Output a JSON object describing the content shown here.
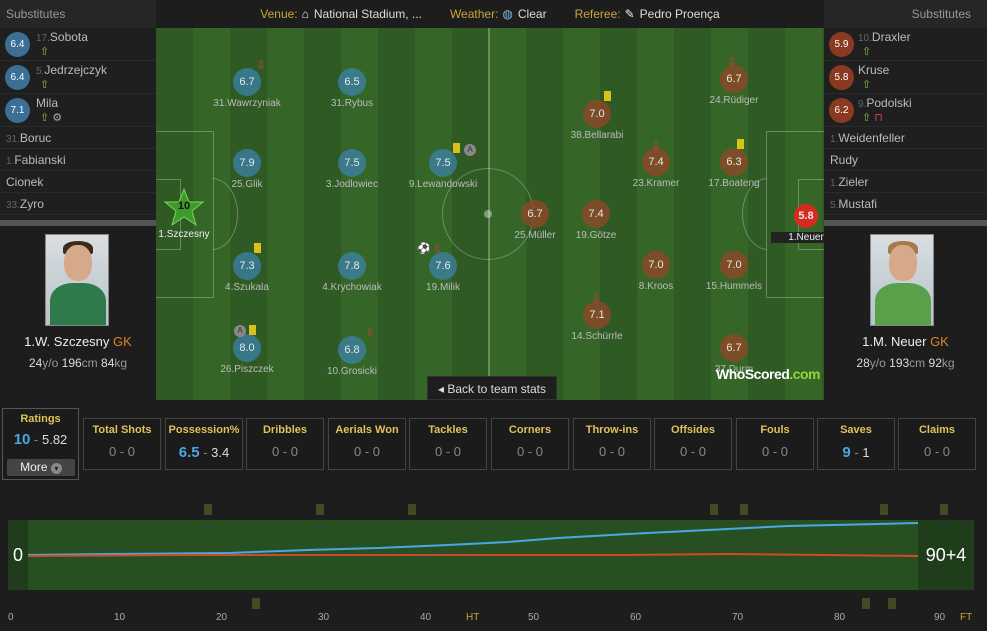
{
  "header": {
    "substitutes_left": "Substitutes",
    "substitutes_right": "Substitutes",
    "venue_label": "Venue:",
    "venue": "National Stadium, ...",
    "weather_label": "Weather:",
    "weather": "Clear",
    "referee_label": "Referee:",
    "referee": "Pedro Proença"
  },
  "subs_left": [
    {
      "num": "17.",
      "name": "Sobota",
      "rating": "6.4"
    },
    {
      "num": "5.",
      "name": "Jedrzejczyk",
      "rating": "6.4"
    },
    {
      "num": "",
      "name": "Mila",
      "rating": "7.1"
    },
    {
      "num": "31.",
      "name": "Boruc"
    },
    {
      "num": "1.",
      "name": "Fabianski"
    },
    {
      "num": "",
      "name": "Cionek"
    },
    {
      "num": "33.",
      "name": "Zyro"
    }
  ],
  "subs_right": [
    {
      "num": "10.",
      "name": "Draxler",
      "rating": "5.9"
    },
    {
      "num": "",
      "name": "Kruse",
      "rating": "5.8"
    },
    {
      "num": "9.",
      "name": "Podolski",
      "rating": "6.2"
    },
    {
      "num": "1.",
      "name": "Weidenfeller"
    },
    {
      "num": "",
      "name": "Rudy"
    },
    {
      "num": "1.",
      "name": "Zieler"
    },
    {
      "num": "5.",
      "name": "Mustafi"
    }
  ],
  "card_left": {
    "name": "1.W. Szczesny",
    "pos": "GK",
    "age": "24",
    "age_u": "y/o",
    "height": "196",
    "height_u": "cm",
    "weight": "84",
    "weight_u": "kg"
  },
  "card_right": {
    "name": "1.M. Neuer",
    "pos": "GK",
    "age": "28",
    "age_u": "y/o",
    "height": "193",
    "height_u": "cm",
    "weight": "92",
    "weight_u": "kg"
  },
  "home_players": [
    {
      "label": "1.Szczesny",
      "rating": "10"
    },
    {
      "label": "31.Wawrzyniak",
      "rating": "6.7"
    },
    {
      "label": "31.Rybus",
      "rating": "6.5"
    },
    {
      "label": "25.Glik",
      "rating": "7.9"
    },
    {
      "label": "3.Jodlowiec",
      "rating": "7.5"
    },
    {
      "label": "9.Lewandowski",
      "rating": "7.5"
    },
    {
      "label": "4.Szukala",
      "rating": "7.3"
    },
    {
      "label": "4.Krychowiak",
      "rating": "7.8"
    },
    {
      "label": "19.Milik",
      "rating": "7.6"
    },
    {
      "label": "26.Piszczek",
      "rating": "8.0"
    },
    {
      "label": "10.Grosicki",
      "rating": "6.8"
    }
  ],
  "away_players": [
    {
      "label": "1.Neuer",
      "rating": "5.8"
    },
    {
      "label": "38.Bellarabi",
      "rating": "7.0"
    },
    {
      "label": "24.Rüdiger",
      "rating": "6.7"
    },
    {
      "label": "23.Kramer",
      "rating": "7.4"
    },
    {
      "label": "17.Boateng",
      "rating": "6.3"
    },
    {
      "label": "25.Müller",
      "rating": "6.7"
    },
    {
      "label": "19.Götze",
      "rating": "7.4"
    },
    {
      "label": "8.Kroos",
      "rating": "7.0"
    },
    {
      "label": "15.Hummels",
      "rating": "7.0"
    },
    {
      "label": "14.Schürrle",
      "rating": "7.1"
    },
    {
      "label": "37.Durm",
      "rating": "6.7"
    }
  ],
  "back_button": "Back to team stats",
  "logo": {
    "a": "WhoScored",
    "b": ".com"
  },
  "ratings": {
    "title": "Ratings",
    "home": "10",
    "sep": "-",
    "away": "5.82",
    "more": "More"
  },
  "stats": [
    {
      "title": "Total Shots",
      "home": "0",
      "away": "0"
    },
    {
      "title": "Possession%",
      "home": "6.5",
      "away": "3.4"
    },
    {
      "title": "Dribbles",
      "home": "0",
      "away": "0"
    },
    {
      "title": "Aerials Won",
      "home": "0",
      "away": "0"
    },
    {
      "title": "Tackles",
      "home": "0",
      "away": "0"
    },
    {
      "title": "Corners",
      "home": "0",
      "away": "0"
    },
    {
      "title": "Throw-ins",
      "home": "0",
      "away": "0"
    },
    {
      "title": "Offsides",
      "home": "0",
      "away": "0"
    },
    {
      "title": "Fouls",
      "home": "0",
      "away": "0"
    },
    {
      "title": "Saves",
      "home": "9",
      "away": "1"
    },
    {
      "title": "Claims",
      "home": "0",
      "away": "0"
    }
  ],
  "timeline": {
    "start": "0",
    "end": "90+4",
    "ticks": [
      "0",
      "10",
      "20",
      "30",
      "40",
      "HT",
      "50",
      "60",
      "70",
      "80",
      "90",
      "FT"
    ]
  },
  "colors": {
    "home": "#3c82aa",
    "away": "#964628",
    "accent": "#dec35a",
    "highlight": "#4aa8e0"
  }
}
